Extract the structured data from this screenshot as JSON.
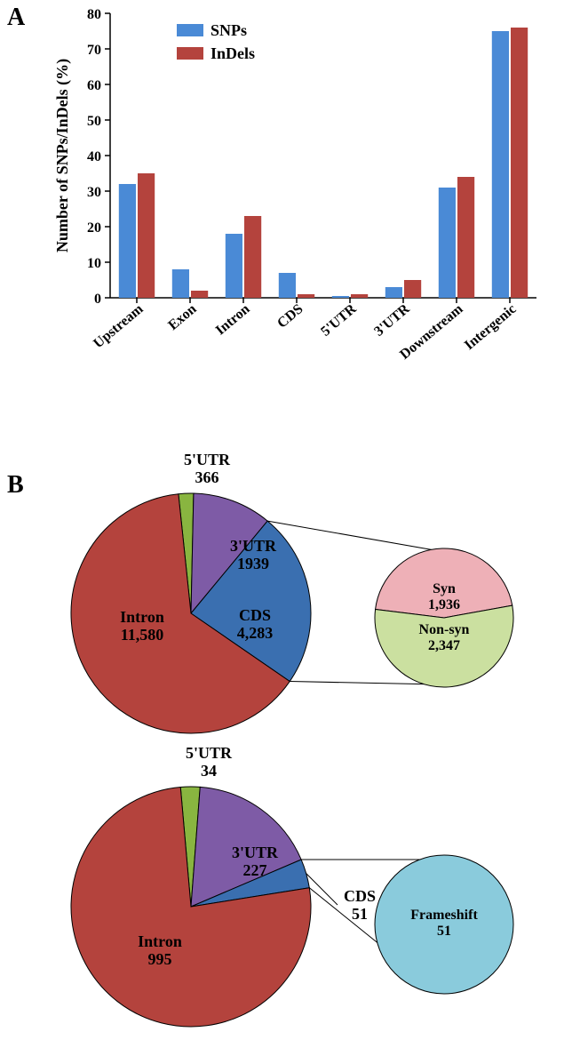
{
  "panelA": {
    "label": "A",
    "ylabel": "Number of SNPs/InDels (%)",
    "categories": [
      "Upstream",
      "Exon",
      "Intron",
      "CDS",
      "5'UTR",
      "3'UTR",
      "Downstream",
      "Intergenic"
    ],
    "series": [
      {
        "name": "SNPs",
        "color": "#4a8ad6",
        "values": [
          32,
          8,
          18,
          7,
          0.5,
          3,
          31,
          75
        ]
      },
      {
        "name": "InDels",
        "color": "#b4433d",
        "values": [
          35,
          2,
          23,
          1,
          1,
          5,
          34,
          76
        ]
      }
    ],
    "ylim": [
      0,
      80
    ],
    "ytick_step": 10,
    "label_fontsize": 18,
    "tick_fontsize": 16,
    "legend_fontsize": 18
  },
  "panelB": {
    "label": "B",
    "pie1": {
      "slices": [
        {
          "label": "Intron",
          "value": 11580,
          "display": "11,580",
          "color": "#b4433d",
          "text_color": "#000000"
        },
        {
          "label": "5'UTR",
          "value": 366,
          "display": "366",
          "color": "#89b540",
          "text_color": "#000000"
        },
        {
          "label": "3'UTR",
          "value": 1939,
          "display": "1939",
          "color": "#7e5ba6",
          "text_color": "#000000"
        },
        {
          "label": "CDS",
          "value": 4283,
          "display": "4,283",
          "color": "#3a6fb0",
          "text_color": "#000000"
        }
      ],
      "label_fontsize": 18
    },
    "breakout1": {
      "slices": [
        {
          "label": "Syn",
          "value": 1936,
          "display": "1,936",
          "color": "#eeb0b7",
          "text_color": "#000000"
        },
        {
          "label": "Non-syn",
          "value": 2347,
          "display": "2,347",
          "color": "#cbe0a0",
          "text_color": "#000000"
        }
      ],
      "label_fontsize": 16
    },
    "pie2": {
      "slices": [
        {
          "label": "Intron",
          "value": 995,
          "display": "995",
          "color": "#b4433d",
          "text_color": "#000000"
        },
        {
          "label": "5'UTR",
          "value": 34,
          "display": "34",
          "color": "#89b540",
          "text_color": "#000000"
        },
        {
          "label": "3'UTR",
          "value": 227,
          "display": "227",
          "color": "#7e5ba6",
          "text_color": "#000000"
        },
        {
          "label": "CDS",
          "value": 51,
          "display": "51",
          "color": "#3a6fb0",
          "text_color": "#000000"
        }
      ],
      "label_fontsize": 18
    },
    "breakout2": {
      "slices": [
        {
          "label": "Frameshift",
          "value": 51,
          "display": "51",
          "color": "#8acbdc",
          "text_color": "#000000"
        }
      ],
      "label_fontsize": 16
    }
  }
}
